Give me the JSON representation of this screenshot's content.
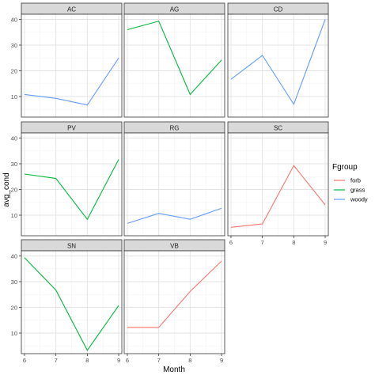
{
  "chart_data": {
    "type": "line",
    "facet_variable": "site",
    "x": [
      6,
      7,
      8,
      9
    ],
    "xlim": [
      5.9,
      9.1
    ],
    "x_ticks": [
      6,
      7,
      8,
      9
    ],
    "ylim": [
      2,
      42
    ],
    "y_ticks": [
      10,
      20,
      30,
      40
    ],
    "xlabel": "Month",
    "ylabel": "avg_cond",
    "grid": true,
    "legend": {
      "title": "Fgroup",
      "placement": "right",
      "entries": [
        {
          "name": "forb",
          "color": "#F8766D"
        },
        {
          "name": "grass",
          "color": "#00BA38"
        },
        {
          "name": "woody",
          "color": "#619CFF"
        }
      ]
    },
    "panels": [
      {
        "title": "AC",
        "series": [
          {
            "group": "woody",
            "values": [
              10.8,
              9.3,
              6.7,
              25.0
            ]
          }
        ]
      },
      {
        "title": "AG",
        "series": [
          {
            "group": "grass",
            "values": [
              36.0,
              39.3,
              10.8,
              24.2
            ]
          }
        ]
      },
      {
        "title": "CD",
        "series": [
          {
            "group": "woody",
            "values": [
              16.7,
              26.0,
              7.0,
              40.0
            ]
          }
        ]
      },
      {
        "title": "PV",
        "series": [
          {
            "group": "grass",
            "values": [
              26.0,
              24.3,
              8.4,
              31.7
            ]
          }
        ]
      },
      {
        "title": "RG",
        "series": [
          {
            "group": "woody",
            "values": [
              6.8,
              10.7,
              8.4,
              12.7
            ]
          }
        ]
      },
      {
        "title": "SC",
        "series": [
          {
            "group": "forb",
            "values": [
              5.3,
              6.6,
              29.3,
              14.0
            ]
          }
        ]
      },
      {
        "title": "SN",
        "series": [
          {
            "group": "grass",
            "values": [
              39.3,
              26.7,
              3.3,
              20.7
            ]
          }
        ]
      },
      {
        "title": "VB",
        "series": [
          {
            "group": "forb",
            "values": [
              12.2,
              12.2,
              26.2,
              38.0
            ]
          }
        ]
      }
    ]
  }
}
